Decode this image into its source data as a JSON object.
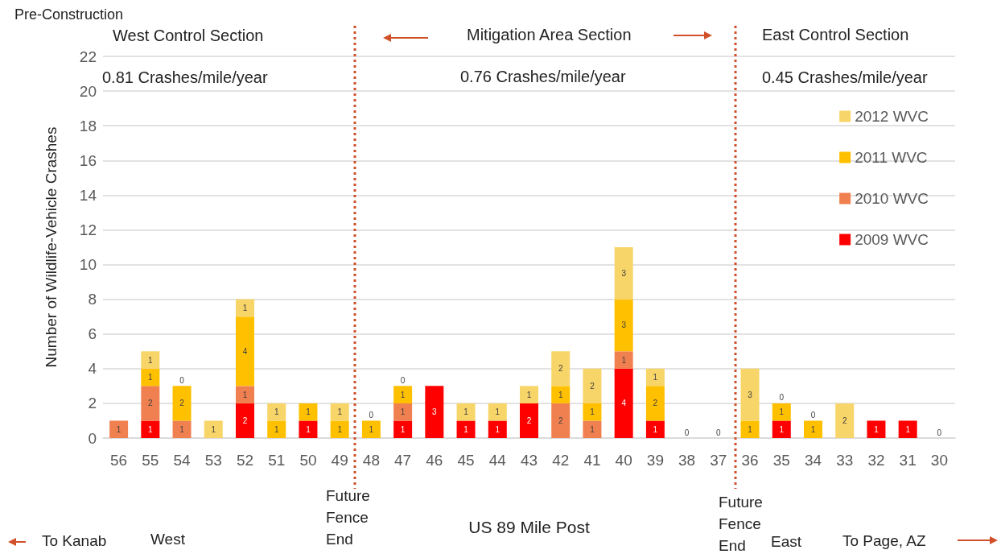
{
  "chart_data": {
    "type": "bar",
    "stacked": true,
    "title": "Pre-Construction",
    "xlabel": "US 89 Mile Post",
    "ylabel": "Number of Wildlife-Vehicle Crashes",
    "categories": [
      "56",
      "55",
      "54",
      "53",
      "52",
      "51",
      "50",
      "49",
      "48",
      "47",
      "46",
      "45",
      "44",
      "43",
      "42",
      "41",
      "40",
      "39",
      "38",
      "37",
      "36",
      "35",
      "34",
      "33",
      "32",
      "31",
      "30"
    ],
    "series": [
      {
        "name": "2009 WVC",
        "color": "#ff0000",
        "values": [
          0,
          1,
          0,
          0,
          2,
          0,
          1,
          0,
          0,
          1,
          3,
          1,
          1,
          2,
          0,
          0,
          4,
          1,
          0,
          0,
          0,
          1,
          0,
          0,
          1,
          1,
          0
        ],
        "value_labels": [
          null,
          "1",
          null,
          null,
          "2",
          null,
          "1",
          null,
          null,
          "1",
          "3",
          "1",
          "1",
          "2",
          null,
          null,
          "4",
          "1",
          null,
          null,
          null,
          "1",
          null,
          null,
          "1",
          "1",
          null
        ]
      },
      {
        "name": "2010 WVC",
        "color": "#f08050",
        "values": [
          1,
          2,
          1,
          0,
          1,
          0,
          0,
          0,
          0,
          1,
          0,
          0,
          0,
          0,
          2,
          1,
          1,
          0,
          0,
          0,
          0,
          0,
          0,
          0,
          0,
          0,
          0
        ],
        "value_labels": [
          "1",
          "2",
          "1",
          null,
          "1",
          null,
          null,
          null,
          null,
          "1",
          null,
          null,
          null,
          null,
          "2",
          "1",
          "1",
          null,
          null,
          null,
          null,
          null,
          null,
          null,
          null,
          null,
          null
        ]
      },
      {
        "name": "2011 WVC",
        "color": "#ffc000",
        "values": [
          0,
          1,
          2,
          0,
          4,
          1,
          1,
          1,
          1,
          1,
          0,
          0,
          0,
          0,
          1,
          1,
          3,
          2,
          0,
          0,
          1,
          1,
          1,
          0,
          0,
          0,
          0
        ],
        "value_labels": [
          null,
          "1",
          "2",
          null,
          "4",
          "1",
          "1",
          "1",
          "1",
          "1",
          null,
          null,
          null,
          null,
          "1",
          "1",
          "3",
          "2",
          null,
          null,
          "1",
          "1",
          "1",
          null,
          null,
          null,
          null
        ]
      },
      {
        "name": "2012 WVC",
        "color": "#f8d568",
        "values": [
          0,
          1,
          0,
          1,
          1,
          1,
          0,
          1,
          0,
          0,
          0,
          1,
          1,
          1,
          2,
          2,
          3,
          1,
          0,
          0,
          3,
          0,
          0,
          2,
          0,
          0,
          0
        ],
        "value_labels": [
          null,
          "1",
          "0",
          "1",
          "1",
          "1",
          null,
          "1",
          "0",
          "0",
          null,
          "1",
          "1",
          "1",
          "2",
          "2",
          "3",
          "1",
          "0",
          "0",
          "3",
          "0",
          "0",
          "2",
          null,
          null,
          "0"
        ]
      }
    ],
    "ylim": [
      0,
      22
    ],
    "yticks": [
      0,
      2,
      4,
      6,
      8,
      10,
      12,
      14,
      16,
      18,
      20,
      22
    ],
    "grid": "y",
    "legend": "right",
    "annotations": [
      "West Control Section",
      "Mitigation Area Section",
      "East Control Section",
      "0.81 Crashes/mile/year",
      "0.76 Crashes/mile/year",
      "0.45 Crashes/mile/year",
      "West",
      "East",
      "To Kanab",
      "To Page, AZ",
      "Future Fence End",
      "Future Fence End"
    ]
  }
}
